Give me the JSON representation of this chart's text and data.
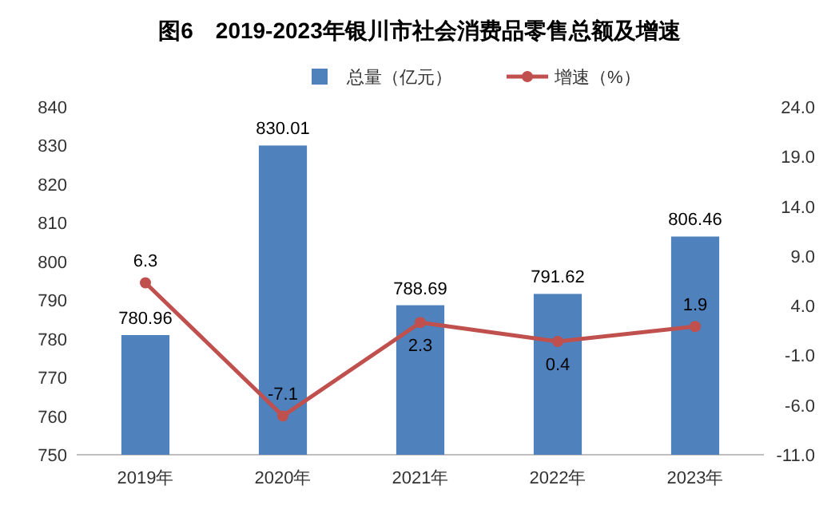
{
  "chart_data": {
    "type": "bar",
    "title": "图6　2019-2023年银川市社会消费品零售总额及增速",
    "categories": [
      "2019年",
      "2020年",
      "2021年",
      "2022年",
      "2023年"
    ],
    "series": [
      {
        "name": "总量（亿元）",
        "color": "#4f81bd",
        "values": [
          780.96,
          830.01,
          788.69,
          791.62,
          806.46
        ]
      },
      {
        "name": "增速（%）",
        "type": "line",
        "axis": "y2",
        "color": "#c0504d",
        "values": [
          6.3,
          -7.1,
          2.3,
          0.4,
          1.9
        ]
      }
    ],
    "ylim": [
      750,
      840
    ],
    "yticks": [
      750,
      760,
      770,
      780,
      790,
      800,
      810,
      820,
      830,
      840
    ],
    "y2lim": [
      -11,
      24
    ],
    "y2ticks": [
      {
        "value": -11,
        "label": "-11.0"
      },
      {
        "value": -6,
        "label": "-6.0"
      },
      {
        "value": -1,
        "label": "-1.0"
      },
      {
        "value": 4,
        "label": "4.0"
      },
      {
        "value": 9,
        "label": "9.0"
      },
      {
        "value": 14,
        "label": "14.0"
      },
      {
        "value": 19,
        "label": "19.0"
      },
      {
        "value": 24,
        "label": "24.0"
      }
    ],
    "data_labels": true,
    "marker": "circle",
    "legend": "top",
    "grid": false
  }
}
